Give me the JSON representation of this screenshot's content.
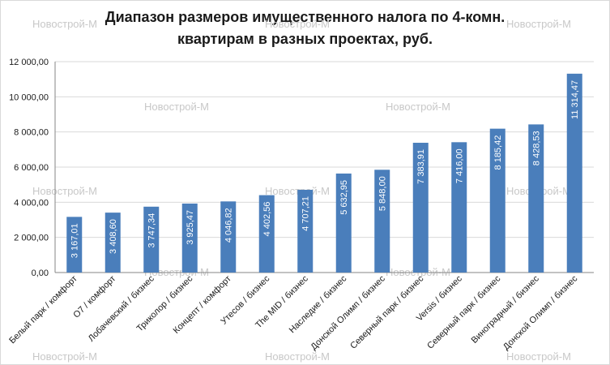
{
  "watermark": "Новострой-М",
  "chart_data": {
    "type": "bar",
    "title_line1": "Диапазон размеров имущественного налога по 4-комн.",
    "title_line2": "квартирам в разных проектах, руб.",
    "categories": [
      "Белый парк / комфорт",
      "О7 / комфорт",
      "Лобачевский / бизнес",
      "Триколор / бизнес",
      "Концепт / комфорт",
      "Утесов / бизнес",
      "The MID / бизнес",
      "Наследие / бизнес",
      "Донской Олимп / бизнес",
      "Северный парк / бизнес",
      "Versis / бизнес",
      "Северный парк / бизнес",
      "Виноградный / бизнес",
      "Донской Олимп / бизнес"
    ],
    "values": [
      3167.01,
      3408.6,
      3747.34,
      3925.47,
      4046.82,
      4402.56,
      4707.21,
      5632.95,
      5848.0,
      7383.91,
      7416.0,
      8185.42,
      8428.53,
      11314.47
    ],
    "value_labels": [
      "3 167,01",
      "3 408,60",
      "3 747,34",
      "3 925,47",
      "4 046,82",
      "4 402,56",
      "4 707,21",
      "5 632,95",
      "5 848,00",
      "7 383,91",
      "7 416,00",
      "8 185,42",
      "8 428,53",
      "11 314,47"
    ],
    "yticks": [
      "0,00",
      "2 000,00",
      "4 000,00",
      "6 000,00",
      "8 000,00",
      "10 000,00",
      "12 000,00"
    ],
    "ylim": [
      0,
      12000
    ],
    "grid": true,
    "bar_color": "#4a7ebb"
  }
}
